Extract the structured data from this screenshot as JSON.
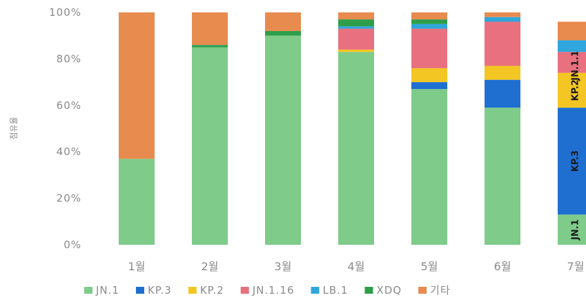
{
  "chart_data": {
    "type": "bar",
    "stacked": true,
    "ylabel": "점유율",
    "ylim": [
      0,
      100
    ],
    "yticks": [
      "0%",
      "20%",
      "40%",
      "60%",
      "80%",
      "100%"
    ],
    "grid": false,
    "legend_position": "bottom",
    "categories": [
      "1월",
      "2월",
      "3월",
      "4월",
      "5월",
      "6월",
      "7월"
    ],
    "series": [
      {
        "name": "JN.1",
        "color": "#7ecb8a",
        "values": [
          37,
          85,
          90,
          83,
          67,
          59,
          13
        ]
      },
      {
        "name": "KP.3",
        "color": "#1f6fd1",
        "values": [
          0,
          0,
          0,
          0,
          3,
          12,
          46
        ]
      },
      {
        "name": "KP.2",
        "color": "#f3c623",
        "values": [
          0,
          0,
          0,
          1,
          6,
          6,
          15
        ]
      },
      {
        "name": "JN.1.16",
        "color": "#e8707f",
        "values": [
          0,
          0,
          0,
          9,
          17,
          19,
          9
        ]
      },
      {
        "name": "LB.1",
        "color": "#2fa7dc",
        "values": [
          0,
          0,
          0,
          1,
          2,
          2,
          5
        ]
      },
      {
        "name": "XDQ",
        "color": "#2e9e4b",
        "values": [
          0,
          1,
          2,
          3,
          2,
          0,
          0
        ]
      },
      {
        "name": "기타",
        "color": "#e88b4f",
        "values": [
          63,
          14,
          8,
          3,
          3,
          2,
          8
        ]
      }
    ],
    "segment_labels": [
      {
        "category_index": 6,
        "series_index": 0,
        "text": "JN.1"
      },
      {
        "category_index": 6,
        "series_index": 1,
        "text": "KP.3"
      },
      {
        "category_index": 6,
        "series_index": 2,
        "text": "KP.2"
      },
      {
        "category_index": 6,
        "series_index": 3,
        "text": "JN.1.16"
      }
    ]
  }
}
